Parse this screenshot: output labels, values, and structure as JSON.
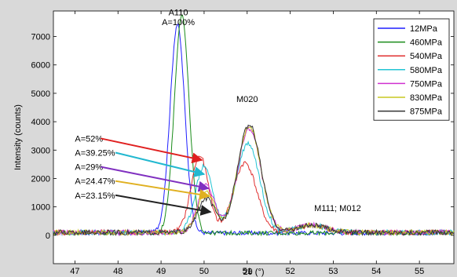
{
  "chart_data": {
    "type": "line",
    "xlabel": "2θ (°)",
    "ylabel": "Intensity (counts)",
    "xlim": [
      46.5,
      55.8
    ],
    "ylim": [
      -1000,
      7900
    ],
    "xticks": [
      47,
      48,
      49,
      50,
      51,
      52,
      53,
      54,
      55
    ],
    "yticks": [
      0,
      1000,
      2000,
      3000,
      4000,
      5000,
      6000,
      7000
    ],
    "grid": false,
    "legend_position": "top-right",
    "series": [
      {
        "name": "12MPa",
        "color": "#1f1fff",
        "peak_a110": [
          49.38,
          7350
        ],
        "peak_m020": [
          51.0,
          0
        ],
        "base": 80
      },
      {
        "name": "460MPa",
        "color": "#1a8c1a",
        "peak_a110": [
          49.48,
          7700
        ],
        "peak_m020": [
          51.0,
          0
        ],
        "base": 80
      },
      {
        "name": "540MPa",
        "color": "#e03030",
        "peak_a110": [
          49.9,
          2700
        ],
        "peak_m020": [
          50.95,
          2450
        ],
        "base": 100
      },
      {
        "name": "580MPa",
        "color": "#22c4d4",
        "peak_a110": [
          50.0,
          2350
        ],
        "peak_m020": [
          51.02,
          3150
        ],
        "base": 100
      },
      {
        "name": "750MPa",
        "color": "#d030d0",
        "peak_a110": [
          50.05,
          1650
        ],
        "peak_m020": [
          51.05,
          3650
        ],
        "base": 100
      },
      {
        "name": "830MPa",
        "color": "#c8c820",
        "peak_a110": [
          50.05,
          1450
        ],
        "peak_m020": [
          51.05,
          3750
        ],
        "base": 100
      },
      {
        "name": "875MPa",
        "color": "#333333",
        "peak_a110": [
          50.05,
          1200
        ],
        "peak_m020": [
          51.05,
          3800
        ],
        "base": 100
      }
    ],
    "annotations": [
      {
        "text": "A110",
        "x": 49.4,
        "y": 7750
      },
      {
        "text": "A=100%",
        "x": 49.4,
        "y": 7400
      },
      {
        "text": "M020",
        "x": 51.0,
        "y": 4700
      },
      {
        "text": "M111; M012",
        "x": 53.1,
        "y": 850
      },
      {
        "text": "A=52%",
        "x": 47.0,
        "y": 3300,
        "arrow_to": [
          49.95,
          2650
        ],
        "color": "#e02020"
      },
      {
        "text": "A=39.25%",
        "x": 47.0,
        "y": 2800,
        "arrow_to": [
          50.0,
          2150
        ],
        "color": "#22b8d0"
      },
      {
        "text": "A=29%",
        "x": 47.0,
        "y": 2300,
        "arrow_to": [
          50.1,
          1650
        ],
        "color": "#8030c0"
      },
      {
        "text": "A=24.47%",
        "x": 47.0,
        "y": 1800,
        "arrow_to": [
          50.12,
          1380
        ],
        "color": "#e0b020"
      },
      {
        "text": "A=23.15%",
        "x": 47.0,
        "y": 1300,
        "arrow_to": [
          50.15,
          820
        ],
        "color": "#222222"
      }
    ]
  }
}
